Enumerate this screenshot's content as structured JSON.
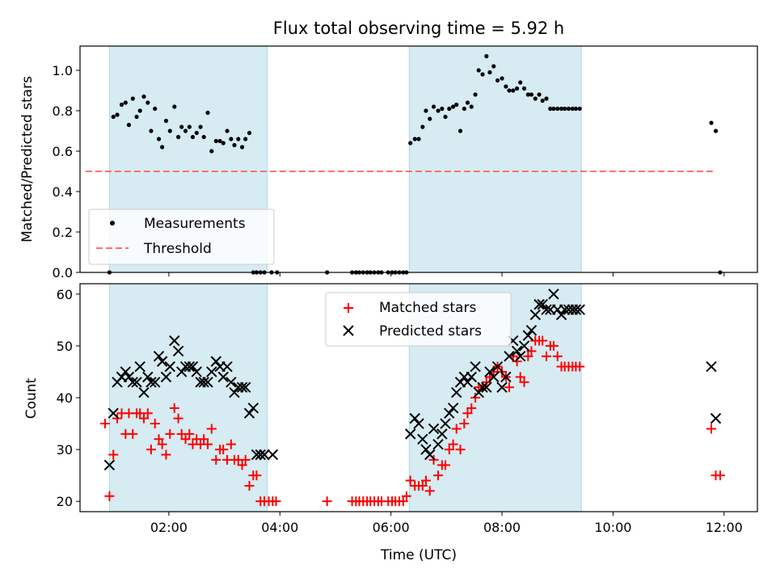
{
  "chart_data": [
    {
      "type": "scatter",
      "title": "Flux total observing time = 5.92 h",
      "xlabel": "",
      "ylabel": "Matched/Predicted stars",
      "x_unit": "hours UTC",
      "xlim": [
        0.4,
        12.6
      ],
      "ylim": [
        0,
        1.12
      ],
      "yticks": [
        0.0,
        0.2,
        0.4,
        0.6,
        0.8,
        1.0
      ],
      "ytick_labels": [
        "0.0",
        "0.2",
        "0.4",
        "0.6",
        "0.8",
        "1.0"
      ],
      "shaded_intervals": [
        [
          0.93,
          3.77
        ],
        [
          6.33,
          9.43
        ]
      ],
      "shade_color": "#add8e6",
      "legend_position": "lower left",
      "series": [
        {
          "name": "Measurements",
          "marker": "dot",
          "color": "#000000",
          "x": [
            0.93,
            1.0,
            1.07,
            1.15,
            1.22,
            1.28,
            1.35,
            1.42,
            1.48,
            1.55,
            1.62,
            1.68,
            1.75,
            1.82,
            1.88,
            1.95,
            2.02,
            2.1,
            2.17,
            2.23,
            2.3,
            2.37,
            2.43,
            2.5,
            2.57,
            2.63,
            2.7,
            2.77,
            2.85,
            2.92,
            2.98,
            3.05,
            3.12,
            3.18,
            3.25,
            3.32,
            3.38,
            3.45,
            3.52,
            3.58,
            3.65,
            3.72,
            3.85,
            3.95,
            4.85,
            5.3,
            5.37,
            5.43,
            5.5,
            5.57,
            5.63,
            5.7,
            5.77,
            5.83,
            5.95,
            6.02,
            6.08,
            6.15,
            6.22,
            6.28,
            6.35,
            6.43,
            6.5,
            6.57,
            6.63,
            6.7,
            6.77,
            6.85,
            6.92,
            6.98,
            7.05,
            7.12,
            7.18,
            7.25,
            7.32,
            7.38,
            7.45,
            7.52,
            7.58,
            7.65,
            7.72,
            7.78,
            7.85,
            7.92,
            8.0,
            8.07,
            8.13,
            8.2,
            8.27,
            8.33,
            8.4,
            8.47,
            8.53,
            8.6,
            8.67,
            8.73,
            8.8,
            8.87,
            8.93,
            9.0,
            9.07,
            9.13,
            9.2,
            9.27,
            9.33,
            9.4,
            11.77,
            11.85,
            11.93
          ],
          "y": [
            0.0,
            0.77,
            0.78,
            0.83,
            0.84,
            0.73,
            0.86,
            0.77,
            0.8,
            0.87,
            0.84,
            0.7,
            0.81,
            0.66,
            0.62,
            0.75,
            0.7,
            0.82,
            0.67,
            0.72,
            0.7,
            0.72,
            0.67,
            0.69,
            0.72,
            0.67,
            0.79,
            0.6,
            0.65,
            0.65,
            0.64,
            0.7,
            0.66,
            0.63,
            0.66,
            0.62,
            0.66,
            0.69,
            0.0,
            0.0,
            0.0,
            0.0,
            0.0,
            0.0,
            0.0,
            0.0,
            0.0,
            0.0,
            0.0,
            0.0,
            0.0,
            0.0,
            0.0,
            0.0,
            0.0,
            0.0,
            0.0,
            0.0,
            0.0,
            0.0,
            0.64,
            0.66,
            0.66,
            0.72,
            0.8,
            0.76,
            0.82,
            0.8,
            0.81,
            0.77,
            0.81,
            0.82,
            0.83,
            0.7,
            0.81,
            0.84,
            0.82,
            0.88,
            1.0,
            0.98,
            1.07,
            0.99,
            1.02,
            0.95,
            0.96,
            0.92,
            0.9,
            0.9,
            0.91,
            0.94,
            0.91,
            0.88,
            0.88,
            0.86,
            0.88,
            0.85,
            0.86,
            0.81,
            0.81,
            0.81,
            0.81,
            0.81,
            0.81,
            0.81,
            0.81,
            0.81,
            0.74,
            0.7,
            0.0
          ]
        },
        {
          "name": "Threshold",
          "style": "dashed",
          "color": "#ff7070",
          "x": [
            0.5,
            11.85
          ],
          "y": [
            0.5,
            0.5
          ]
        }
      ]
    },
    {
      "type": "scatter",
      "title": "",
      "xlabel": "Time (UTC)",
      "ylabel": "Count",
      "x_unit": "hours UTC",
      "xlim": [
        0.4,
        12.6
      ],
      "ylim": [
        18,
        62
      ],
      "xticks": [
        2,
        4,
        6,
        8,
        10,
        12
      ],
      "xtick_labels": [
        "02:00",
        "04:00",
        "06:00",
        "08:00",
        "10:00",
        "12:00"
      ],
      "yticks": [
        20,
        30,
        40,
        50,
        60
      ],
      "ytick_labels": [
        "20",
        "30",
        "40",
        "50",
        "60"
      ],
      "shaded_intervals": [
        [
          0.93,
          3.77
        ],
        [
          6.33,
          9.43
        ]
      ],
      "shade_color": "#add8e6",
      "legend_position": "upper center",
      "series": [
        {
          "name": "Matched stars",
          "marker": "plus",
          "color": "#ff0000",
          "x": [
            0.85,
            0.93,
            1.0,
            1.07,
            1.15,
            1.22,
            1.28,
            1.35,
            1.42,
            1.48,
            1.55,
            1.62,
            1.68,
            1.75,
            1.82,
            1.88,
            1.95,
            2.02,
            2.1,
            2.17,
            2.23,
            2.3,
            2.37,
            2.43,
            2.5,
            2.57,
            2.63,
            2.7,
            2.77,
            2.85,
            2.92,
            2.98,
            3.05,
            3.12,
            3.18,
            3.25,
            3.32,
            3.38,
            3.45,
            3.52,
            3.58,
            3.65,
            3.72,
            3.8,
            3.87,
            3.93,
            4.85,
            5.3,
            5.37,
            5.43,
            5.5,
            5.57,
            5.63,
            5.7,
            5.77,
            5.83,
            5.95,
            6.02,
            6.08,
            6.15,
            6.22,
            6.28,
            6.35,
            6.43,
            6.5,
            6.57,
            6.63,
            6.7,
            6.77,
            6.85,
            6.92,
            6.98,
            7.05,
            7.12,
            7.18,
            7.25,
            7.32,
            7.38,
            7.45,
            7.52,
            7.58,
            7.65,
            7.72,
            7.78,
            7.85,
            7.92,
            8.0,
            8.07,
            8.13,
            8.2,
            8.27,
            8.33,
            8.4,
            8.47,
            8.53,
            8.6,
            8.67,
            8.73,
            8.8,
            8.87,
            8.93,
            9.0,
            9.07,
            9.13,
            9.2,
            9.27,
            9.33,
            9.4,
            11.77,
            11.85,
            11.93
          ],
          "y": [
            35,
            21,
            29,
            36,
            37,
            33,
            37,
            33,
            37,
            37,
            36,
            37,
            30,
            35,
            32,
            31,
            29,
            33,
            38,
            36,
            33,
            32,
            33,
            31,
            32,
            31,
            32,
            31,
            34,
            28,
            30,
            30,
            28,
            31,
            28,
            28,
            27,
            28,
            23,
            25,
            25,
            20,
            20,
            20,
            20,
            20,
            20,
            20,
            20,
            20,
            20,
            20,
            20,
            20,
            20,
            20,
            20,
            20,
            20,
            20,
            20,
            21,
            24,
            23,
            23,
            23,
            24,
            22,
            28,
            25,
            27,
            27,
            30,
            31,
            34,
            30,
            35,
            37,
            38,
            40,
            42,
            42,
            43,
            44,
            45,
            46,
            45,
            44,
            42,
            48,
            47,
            44,
            43,
            48,
            49,
            51,
            51,
            51,
            48,
            50,
            50,
            48,
            46,
            46,
            46,
            46,
            46,
            46,
            34,
            25,
            25
          ]
        },
        {
          "name": "Predicted stars",
          "marker": "x",
          "color": "#000000",
          "x": [
            0.93,
            1.0,
            1.07,
            1.15,
            1.22,
            1.28,
            1.35,
            1.42,
            1.48,
            1.55,
            1.62,
            1.68,
            1.75,
            1.82,
            1.88,
            1.95,
            2.02,
            2.1,
            2.17,
            2.23,
            2.3,
            2.37,
            2.43,
            2.5,
            2.57,
            2.63,
            2.7,
            2.77,
            2.85,
            2.92,
            2.98,
            3.05,
            3.12,
            3.18,
            3.25,
            3.32,
            3.38,
            3.45,
            3.52,
            3.58,
            3.65,
            3.72,
            3.87,
            6.35,
            6.43,
            6.5,
            6.57,
            6.63,
            6.7,
            6.77,
            6.85,
            6.92,
            6.98,
            7.05,
            7.12,
            7.18,
            7.25,
            7.32,
            7.38,
            7.45,
            7.52,
            7.58,
            7.65,
            7.72,
            7.78,
            7.85,
            7.92,
            8.0,
            8.07,
            8.13,
            8.2,
            8.27,
            8.33,
            8.4,
            8.47,
            8.53,
            8.6,
            8.67,
            8.73,
            8.8,
            8.87,
            8.93,
            9.0,
            9.07,
            9.13,
            9.2,
            9.27,
            9.33,
            9.4,
            11.77,
            11.85
          ],
          "y": [
            27,
            37,
            43,
            44,
            45,
            44,
            43,
            43,
            46,
            41,
            44,
            43,
            43,
            48,
            47,
            44,
            46,
            51,
            49,
            45,
            46,
            46,
            46,
            45,
            43,
            43,
            43,
            45,
            47,
            46,
            44,
            46,
            43,
            41,
            42,
            42,
            42,
            37,
            38,
            29,
            29,
            29,
            29,
            33,
            36,
            35,
            32,
            30,
            29,
            34,
            31,
            33,
            35,
            37,
            38,
            41,
            43,
            44,
            43,
            44,
            46,
            41,
            42,
            42,
            45,
            44,
            46,
            42,
            44,
            48,
            51,
            49,
            48,
            50,
            52,
            53,
            56,
            58,
            58,
            57,
            57,
            60,
            57,
            56,
            57,
            57,
            57,
            57,
            57,
            46,
            36
          ]
        }
      ]
    }
  ]
}
